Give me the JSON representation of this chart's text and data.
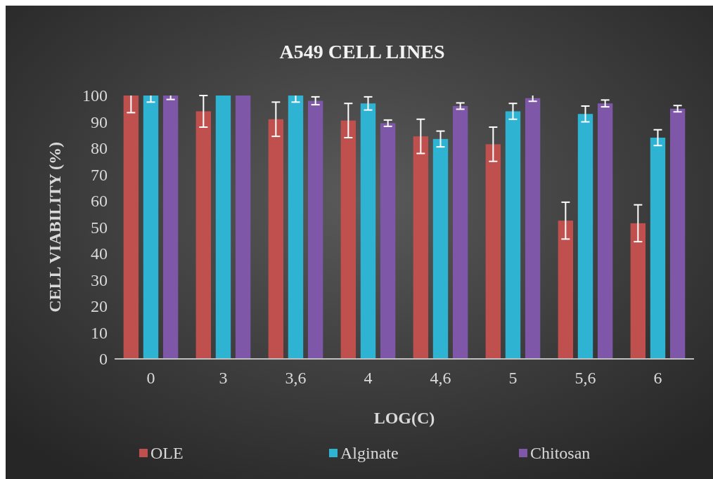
{
  "chart_data": {
    "type": "bar",
    "title": "A549 CELL LINES",
    "xlabel": "LOG(C)",
    "ylabel": "CELL VIABILITY (%)",
    "categories": [
      "0",
      "3",
      "3,6",
      "4",
      "4,6",
      "5",
      "5,6",
      "6"
    ],
    "series": [
      {
        "name": "OLE",
        "color": "#c0504d",
        "values": [
          100,
          94,
          91,
          90.5,
          84.5,
          81.5,
          52.5,
          51.5
        ],
        "errors": [
          6.5,
          6,
          6.5,
          6.5,
          6.5,
          6.5,
          7,
          7
        ]
      },
      {
        "name": "Alginate",
        "color": "#2fb3d3",
        "values": [
          100,
          100,
          100,
          97,
          83.5,
          94,
          93,
          84
        ],
        "errors": [
          2.5,
          null,
          2.5,
          2.5,
          3,
          3,
          3,
          3
        ]
      },
      {
        "name": "Chitosan",
        "color": "#7e57a8",
        "values": [
          100,
          100,
          98,
          89.5,
          96,
          99,
          97,
          95
        ],
        "errors": [
          1.5,
          null,
          1.5,
          1.2,
          1.2,
          1.2,
          1.3,
          1.2
        ]
      }
    ],
    "ylim": [
      0,
      100
    ],
    "yticks": [
      0,
      10,
      20,
      30,
      40,
      50,
      60,
      70,
      80,
      90,
      100
    ],
    "grid": false,
    "legend": "bottom"
  }
}
